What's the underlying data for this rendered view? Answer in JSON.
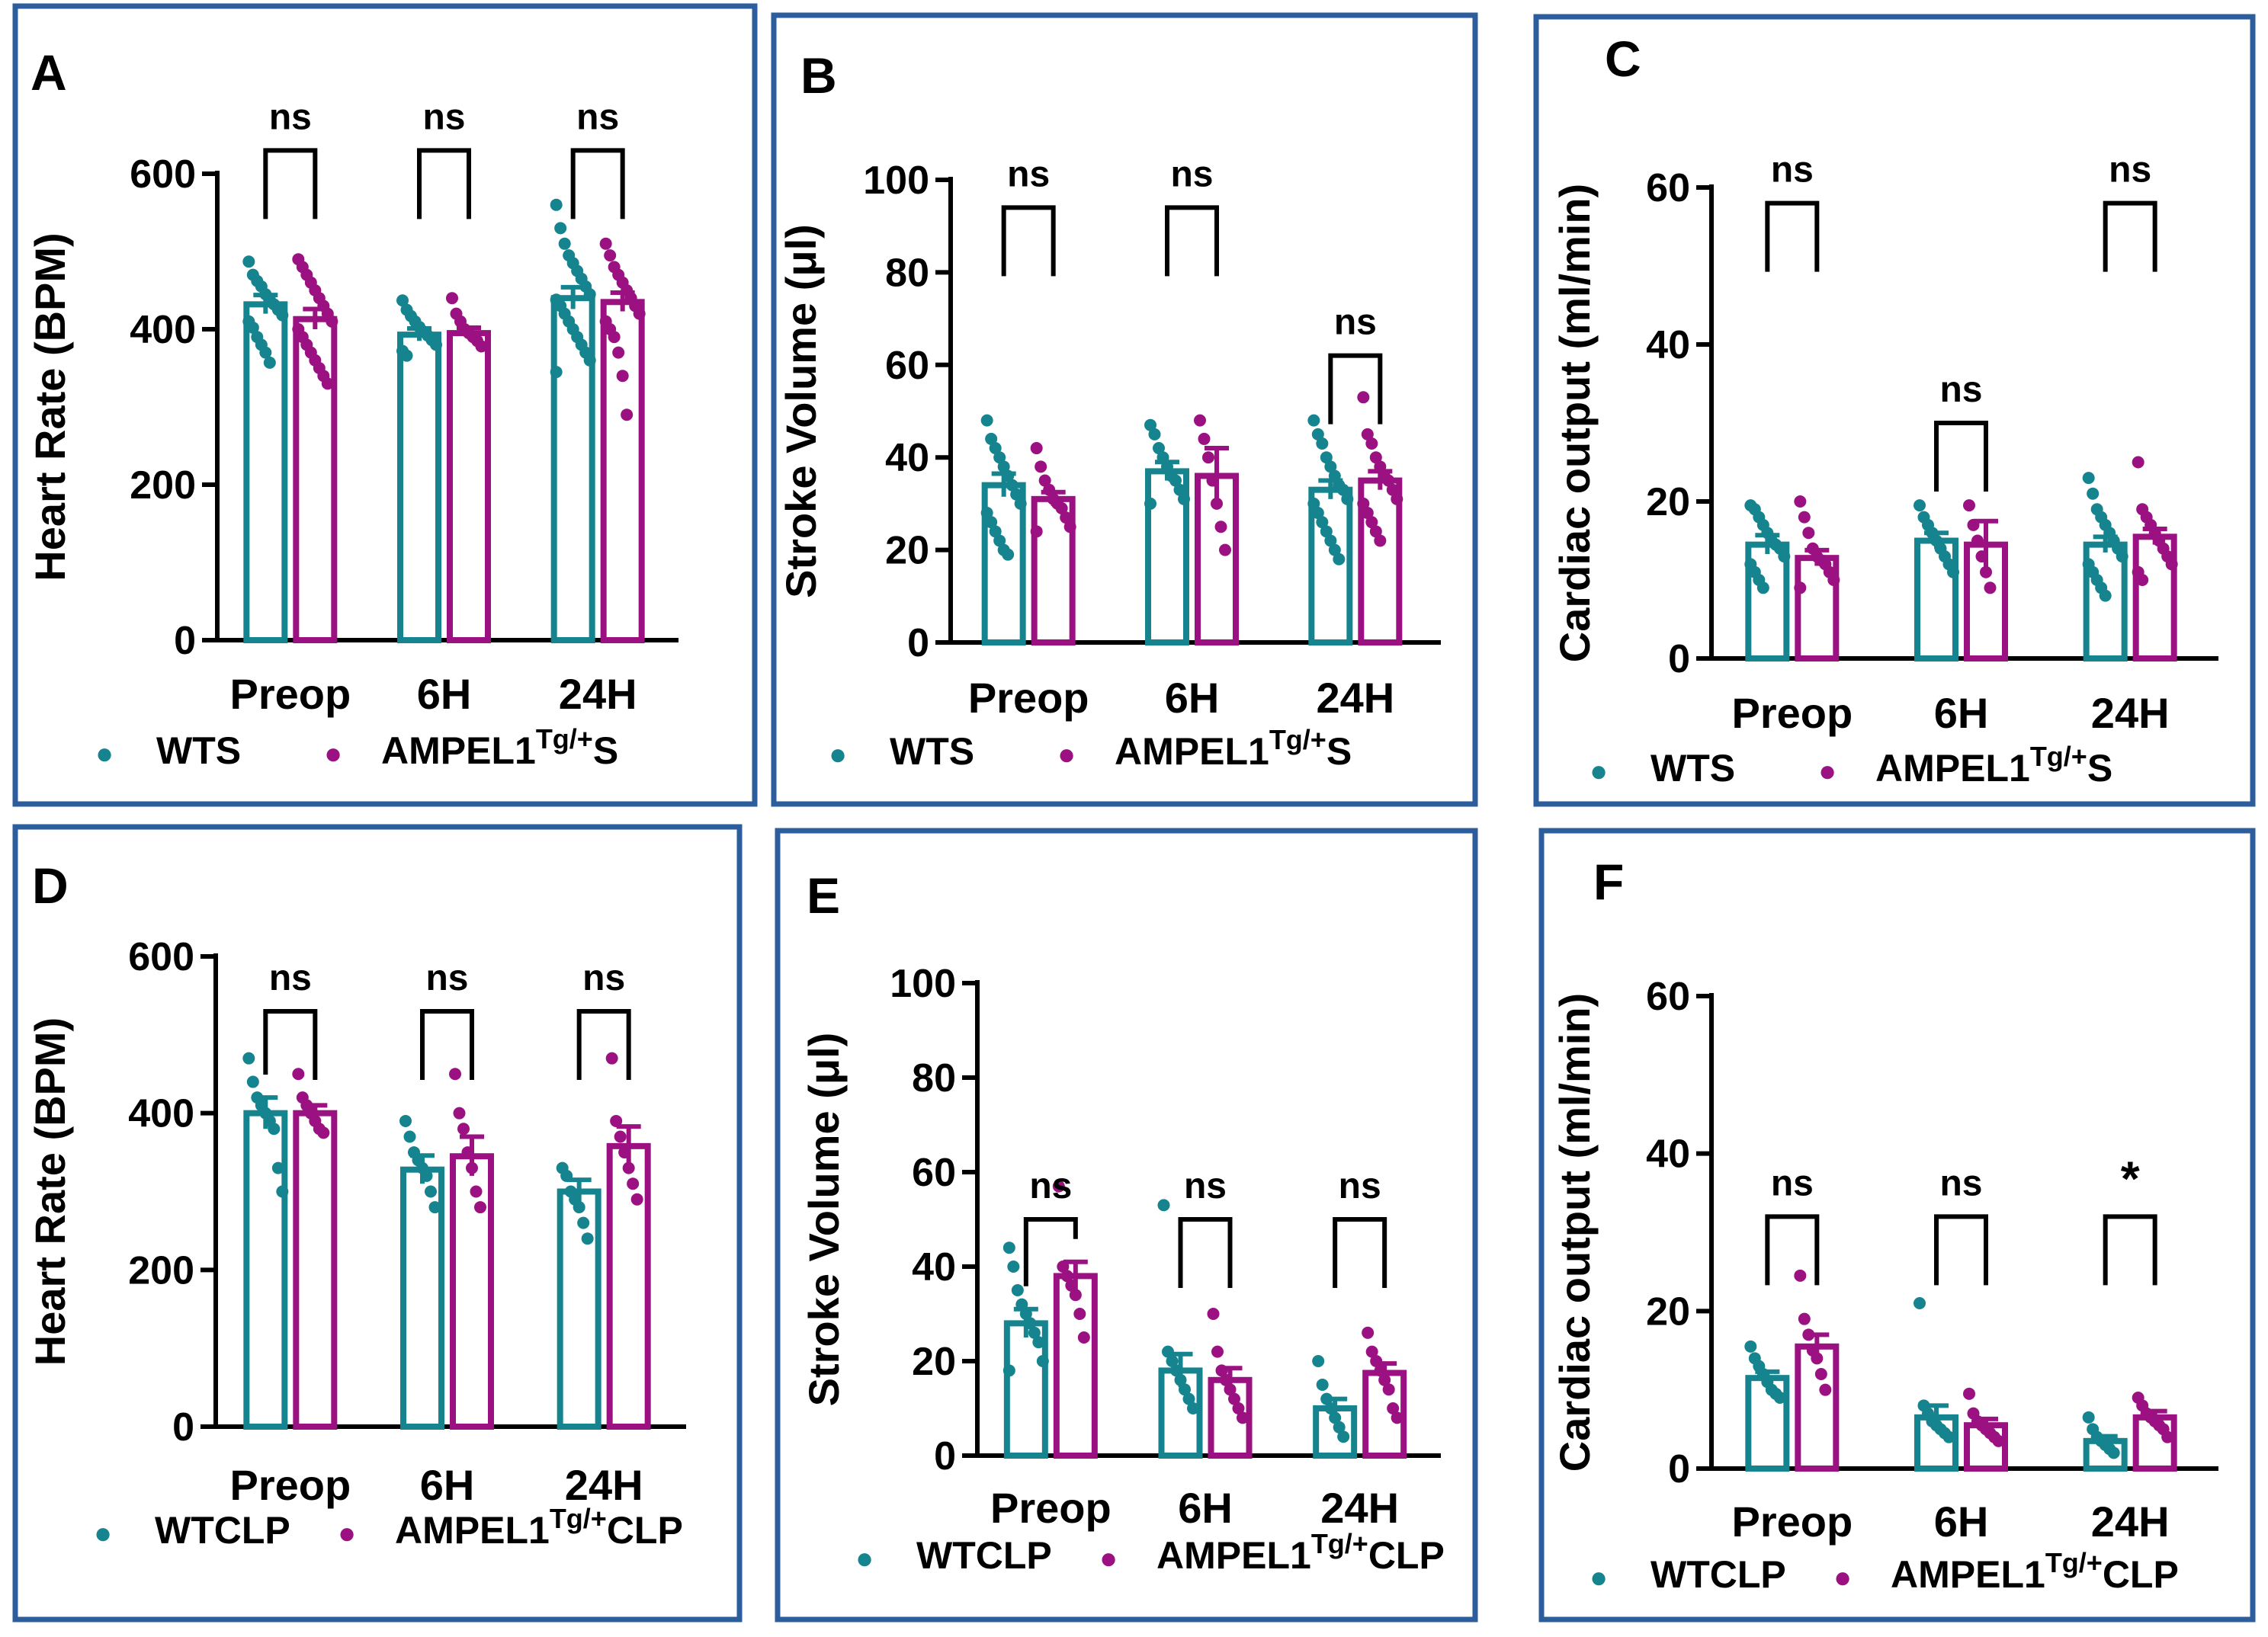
{
  "colors": {
    "wt": "#15848E",
    "tg": "#9B1182",
    "frame": "#2C5E9E",
    "axis": "#000000"
  },
  "legend_marker": "●",
  "chart_data": [
    {
      "type": "bar",
      "panel": "A",
      "title": "",
      "xlabel": "",
      "ylabel": "Heart Rate (BPM)",
      "ylim": [
        0,
        600
      ],
      "yticks": [
        0,
        200,
        400,
        600
      ],
      "categories": [
        "Preop",
        "6H",
        "24H"
      ],
      "series": [
        {
          "name": "WTS",
          "values": [
            432,
            393,
            440
          ],
          "errors": [
            12,
            8,
            14
          ],
          "points": [
            [
              487,
              470,
              462,
              455,
              445,
              438,
              432,
              425,
              418,
              410,
              402,
              390,
              380,
              370,
              357
            ],
            [
              437,
              425,
              417,
              410,
              403,
              397,
              392,
              386,
              380,
              372,
              366
            ],
            [
              560,
              530,
              510,
              495,
              485,
              475,
              465,
              455,
              445,
              438,
              430,
              420,
              410,
              400,
              390,
              380,
              370,
              360,
              345
            ]
          ]
        },
        {
          "name": "AMPEL1",
          "sup": "Tg/+",
          "suffix": "S",
          "values": [
            413,
            395,
            435
          ],
          "errors": [
            13,
            7,
            12
          ],
          "points": [
            [
              490,
              480,
              470,
              460,
              450,
              440,
              430,
              420,
              410,
              400,
              390,
              380,
              370,
              360,
              350,
              340,
              330
            ],
            [
              440,
              420,
              410,
              400,
              395,
              390,
              385,
              378
            ],
            [
              510,
              495,
              480,
              470,
              460,
              450,
              440,
              430,
              420,
              410,
              400,
              390,
              370,
              340,
              290
            ]
          ]
        }
      ],
      "comparisons": [
        {
          "label": "ns",
          "y": 630
        },
        {
          "label": "ns",
          "y": 630
        },
        {
          "label": "ns",
          "y": 630
        }
      ]
    },
    {
      "type": "bar",
      "panel": "B",
      "title": "",
      "xlabel": "",
      "ylabel": "Stroke Volume (μl)",
      "ylim": [
        0,
        100
      ],
      "yticks": [
        0,
        20,
        40,
        60,
        80,
        100
      ],
      "categories": [
        "Preop",
        "6H",
        "24H"
      ],
      "series": [
        {
          "name": "WTS",
          "values": [
            34,
            37,
            33
          ],
          "errors": [
            2.5,
            2,
            2
          ],
          "points": [
            [
              48,
              44,
              42,
              40,
              38,
              36,
              34,
              32,
              30,
              28,
              26,
              24,
              22,
              20,
              19
            ],
            [
              47,
              45,
              42,
              40,
              38,
              36,
              35,
              33,
              31,
              30
            ],
            [
              48,
              45,
              43,
              40,
              38,
              36,
              34,
              33,
              31,
              30,
              28,
              26,
              24,
              22,
              20,
              18
            ]
          ]
        },
        {
          "name": "AMPEL1",
          "sup": "Tg/+",
          "suffix": "S",
          "values": [
            31,
            36,
            35
          ],
          "errors": [
            1.5,
            6,
            2
          ],
          "points": [
            [
              42,
              38,
              35,
              33,
              31,
              30,
              29,
              27,
              25,
              24
            ],
            [
              48,
              44,
              40,
              35,
              30,
              25,
              20
            ],
            [
              53,
              45,
              43,
              40,
              38,
              36,
              35,
              33,
              31,
              30,
              28,
              26,
              24,
              22
            ]
          ]
        }
      ],
      "comparisons": [
        {
          "label": "ns",
          "y": 94
        },
        {
          "label": "ns",
          "y": 94
        },
        {
          "label": "ns",
          "y": 62
        }
      ]
    },
    {
      "type": "bar",
      "panel": "C",
      "title": "",
      "xlabel": "",
      "ylabel": "Cardiac output (ml/min)",
      "ylim": [
        0,
        60
      ],
      "yticks": [
        0,
        20,
        40,
        60
      ],
      "categories": [
        "Preop",
        "6H",
        "24H"
      ],
      "series": [
        {
          "name": "WTS",
          "values": [
            14.5,
            15,
            14.5
          ],
          "errors": [
            1.2,
            1,
            1
          ],
          "points": [
            [
              19.5,
              19,
              18,
              17,
              16,
              15,
              14.5,
              14,
              13,
              12,
              11,
              10,
              9
            ],
            [
              19.5,
              18,
              17,
              16,
              15,
              14,
              13,
              12,
              11
            ],
            [
              23,
              21,
              19,
              18,
              17,
              16,
              15,
              14,
              13,
              12,
              11,
              10,
              9,
              8
            ]
          ]
        },
        {
          "name": "AMPEL1",
          "sup": "Tg/+",
          "suffix": "S",
          "values": [
            12.8,
            14.5,
            15.5
          ],
          "errors": [
            1,
            3,
            1
          ],
          "points": [
            [
              20,
              18,
              16,
              14,
              13,
              12.5,
              12,
              11,
              10,
              9
            ],
            [
              19.5,
              17,
              15,
              13,
              11,
              9
            ],
            [
              25,
              19,
              18,
              17,
              16,
              15,
              14,
              13,
              12,
              11,
              10
            ]
          ]
        }
      ],
      "comparisons": [
        {
          "label": "ns",
          "y": 58
        },
        {
          "label": "ns",
          "y": 30
        },
        {
          "label": "ns",
          "y": 58
        }
      ]
    },
    {
      "type": "bar",
      "panel": "D",
      "title": "",
      "xlabel": "",
      "ylabel": "Heart Rate (BPM)",
      "ylim": [
        0,
        600
      ],
      "yticks": [
        0,
        200,
        400,
        600
      ],
      "categories": [
        "Preop",
        "6H",
        "24H"
      ],
      "series": [
        {
          "name": "WTCLP",
          "values": [
            400,
            328,
            300
          ],
          "errors": [
            20,
            18,
            15
          ],
          "points": [
            [
              470,
              440,
              420,
              410,
              400,
              390,
              380,
              330,
              300
            ],
            [
              390,
              370,
              350,
              340,
              330,
              320,
              300,
              280
            ],
            [
              330,
              320,
              300,
              290,
              280,
              260,
              240
            ]
          ]
        },
        {
          "name": "AMPEL1",
          "sup": "Tg/+",
          "suffix": "CLP",
          "values": [
            400,
            345,
            358
          ],
          "errors": [
            10,
            25,
            25
          ],
          "points": [
            [
              450,
              420,
              410,
              400,
              390,
              380,
              375
            ],
            [
              450,
              400,
              380,
              350,
              330,
              300,
              280
            ],
            [
              470,
              390,
              370,
              350,
              330,
              310,
              290
            ]
          ]
        }
      ],
      "comparisons": [
        {
          "label": "ns",
          "y": 530
        },
        {
          "label": "ns",
          "y": 530
        },
        {
          "label": "ns",
          "y": 530
        }
      ]
    },
    {
      "type": "bar",
      "panel": "E",
      "title": "",
      "xlabel": "",
      "ylabel": "Stroke Volume (μl)",
      "ylim": [
        0,
        100
      ],
      "yticks": [
        0,
        20,
        40,
        60,
        80,
        100
      ],
      "categories": [
        "Preop",
        "6H",
        "24H"
      ],
      "series": [
        {
          "name": "WTCLP",
          "values": [
            28,
            18,
            10
          ],
          "errors": [
            3,
            3.5,
            2
          ],
          "points": [
            [
              44,
              40,
              35,
              32,
              30,
              28,
              26,
              24,
              20,
              18
            ],
            [
              53,
              22,
              20,
              18,
              16,
              14,
              12,
              10
            ],
            [
              20,
              15,
              12,
              10,
              8,
              6,
              4
            ]
          ]
        },
        {
          "name": "AMPEL1",
          "sup": "Tg/+",
          "suffix": "CLP",
          "values": [
            38,
            16,
            17.5
          ],
          "errors": [
            3,
            2.5,
            2
          ],
          "points": [
            [
              57,
              40,
              38,
              36,
              34,
              30,
              25
            ],
            [
              30,
              22,
              18,
              16,
              14,
              12,
              10,
              8
            ],
            [
              26,
              22,
              20,
              18,
              16,
              14,
              10,
              8
            ]
          ]
        }
      ],
      "comparisons": [
        {
          "label": "ns",
          "y": 50
        },
        {
          "label": "ns",
          "y": 50
        },
        {
          "label": "ns",
          "y": 50
        }
      ]
    },
    {
      "type": "bar",
      "panel": "F",
      "title": "",
      "xlabel": "",
      "ylabel": "Cardiac output (ml/min)",
      "ylim": [
        0,
        60
      ],
      "yticks": [
        0,
        20,
        40,
        60
      ],
      "categories": [
        "Preop",
        "6H",
        "24H"
      ],
      "series": [
        {
          "name": "WTCLP",
          "values": [
            11.5,
            6.5,
            3.5
          ],
          "errors": [
            0.8,
            1.5,
            0.6
          ],
          "points": [
            [
              15.5,
              14,
              13,
              12,
              11,
              10,
              9.5,
              9
            ],
            [
              21,
              8,
              7,
              6,
              5.5,
              5,
              4.5,
              4
            ],
            [
              6.5,
              5,
              4,
              3.5,
              3,
              2.5,
              2
            ]
          ]
        },
        {
          "name": "AMPEL1",
          "sup": "Tg/+",
          "suffix": "CLP",
          "values": [
            15.5,
            5.5,
            6.5
          ],
          "errors": [
            1.5,
            0.8,
            0.8
          ],
          "points": [
            [
              24.5,
              19,
              17,
              15,
              14,
              12,
              10
            ],
            [
              9.5,
              7,
              6,
              5.5,
              5,
              4.5,
              4,
              3.5
            ],
            [
              9,
              8,
              7,
              6.5,
              6,
              5.5,
              5,
              4
            ]
          ]
        }
      ],
      "comparisons": [
        {
          "label": "ns",
          "y": 32
        },
        {
          "label": "ns",
          "y": 32
        },
        {
          "label": "*",
          "y": 32
        }
      ]
    }
  ]
}
